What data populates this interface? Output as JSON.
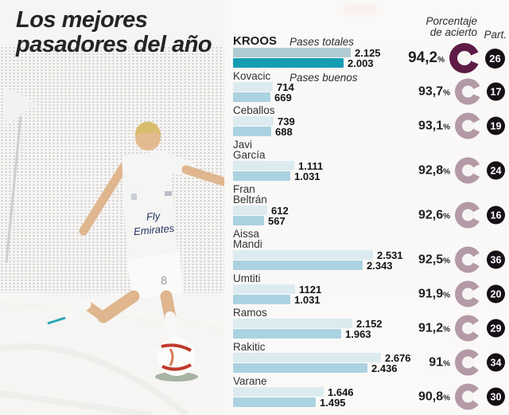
{
  "title": {
    "line1": "Los mejores",
    "line2": "pasadores del año"
  },
  "headers": {
    "accuracy_line1": "Porcentaje",
    "accuracy_line2": "de acierto",
    "participation": "Part."
  },
  "legend": {
    "total": "Pases totales",
    "good": "Pases buenos"
  },
  "photo": {
    "jersey_line1": "Fly",
    "jersey_line2": "Emirates",
    "shorts_number": "8"
  },
  "colors": {
    "bar_total": "#dcebf0",
    "bar_good": "#abd2e0",
    "bar_total_highlight": "#b0cbd1",
    "bar_good_highlight": "#179db3",
    "ring": "#b49aa6",
    "ring_highlight": "#5f1b45",
    "badge_bg": "#151015",
    "badge_text": "#ffffff"
  },
  "chart_data": {
    "type": "bar",
    "orientation": "horizontal",
    "title": "Los mejores pasadores del año",
    "series_labels": [
      "Pases totales",
      "Pases buenos"
    ],
    "percent_sign": "%",
    "max_value": 2676,
    "players": [
      {
        "name": "Kroos",
        "lines": [
          "KROOS"
        ],
        "total": 2125,
        "good": 2003,
        "total_label": "2.125",
        "good_label": "2.003",
        "pct": 94.2,
        "pct_label": "94,2",
        "part": "26",
        "highlight": true
      },
      {
        "name": "Kovacic",
        "lines": [
          "Kovacic"
        ],
        "total": 714,
        "good": 669,
        "total_label": "714",
        "good_label": "669",
        "pct": 93.7,
        "pct_label": "93,7",
        "part": "17",
        "highlight": false
      },
      {
        "name": "Ceballos",
        "lines": [
          "Ceballos"
        ],
        "total": 739,
        "good": 688,
        "total_label": "739",
        "good_label": "688",
        "pct": 93.1,
        "pct_label": "93,1",
        "part": "19",
        "highlight": false
      },
      {
        "name": "Javi García",
        "lines": [
          "Javi",
          "García"
        ],
        "total": 1111,
        "good": 1031,
        "total_label": "1.111",
        "good_label": "1.031",
        "pct": 92.8,
        "pct_label": "92,8",
        "part": "24",
        "highlight": false
      },
      {
        "name": "Fran Beltrán",
        "lines": [
          "Fran",
          "Beltrán"
        ],
        "total": 612,
        "good": 567,
        "total_label": "612",
        "good_label": "567",
        "pct": 92.6,
        "pct_label": "92,6",
        "part": "16",
        "highlight": false
      },
      {
        "name": "Aissa Mandi",
        "lines": [
          "Aissa",
          "Mandi"
        ],
        "total": 2531,
        "good": 2343,
        "total_label": "2.531",
        "good_label": "2.343",
        "pct": 92.5,
        "pct_label": "92,5",
        "part": "36",
        "highlight": false
      },
      {
        "name": "Umtiti",
        "lines": [
          "Umtiti"
        ],
        "total": 1121,
        "good": 1031,
        "total_label": "1121",
        "good_label": "1.031",
        "pct": 91.9,
        "pct_label": "91,9",
        "part": "20",
        "highlight": false
      },
      {
        "name": "Ramos",
        "lines": [
          "Ramos"
        ],
        "total": 2152,
        "good": 1963,
        "total_label": "2.152",
        "good_label": "1.963",
        "pct": 91.2,
        "pct_label": "91,2",
        "part": "29",
        "highlight": false
      },
      {
        "name": "Rakitic",
        "lines": [
          "Rakitic"
        ],
        "total": 2676,
        "good": 2436,
        "total_label": "2.676",
        "good_label": "2.436",
        "pct": 91.0,
        "pct_label": "91",
        "part": "34",
        "highlight": false
      },
      {
        "name": "Varane",
        "lines": [
          "Varane"
        ],
        "total": 1646,
        "good": 1495,
        "total_label": "1.646",
        "good_label": "1.495",
        "pct": 90.8,
        "pct_label": "90,8",
        "part": "30",
        "highlight": false
      }
    ]
  }
}
